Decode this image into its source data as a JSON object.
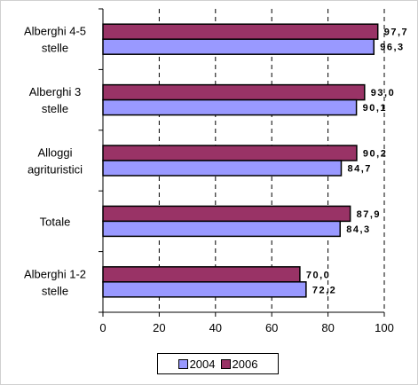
{
  "chart_data": {
    "type": "bar",
    "orientation": "horizontal",
    "categories": [
      [
        "Alberghi 4-5",
        "stelle"
      ],
      [
        "Alberghi 3",
        "stelle"
      ],
      [
        "Alloggi",
        "agrituristici"
      ],
      [
        "Totale"
      ],
      [
        "Alberghi 1-2",
        "stelle"
      ]
    ],
    "series": [
      {
        "name": "2006",
        "color": "#993366",
        "values": [
          97.7,
          93.0,
          90.2,
          87.9,
          70.0
        ],
        "labels": [
          "97,7",
          "93,0",
          "90,2",
          "87,9",
          "70,0"
        ]
      },
      {
        "name": "2004",
        "color": "#9999ff",
        "values": [
          96.3,
          90.1,
          84.7,
          84.3,
          72.2
        ],
        "labels": [
          "96,3",
          "90,1",
          "84,7",
          "84,3",
          "72,2"
        ]
      }
    ],
    "xlim": [
      0,
      100
    ],
    "xticks": [
      0,
      20,
      40,
      60,
      80,
      100
    ],
    "xticklabels": [
      "0",
      "20",
      "40",
      "60",
      "80",
      "100"
    ],
    "grid": "vertical dashed",
    "legend_position": "bottom",
    "legend_order": [
      "2004",
      "2006"
    ]
  }
}
